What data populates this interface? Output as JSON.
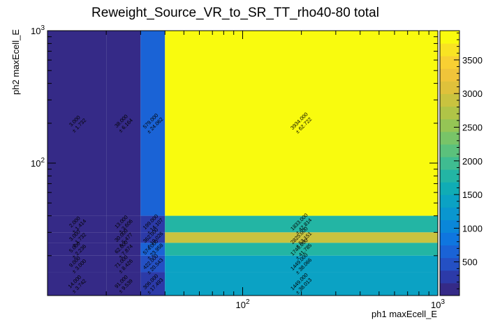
{
  "chart_data": {
    "type": "heatmap",
    "title": "Reweight_Source_VR_to_SR_TT_rho40-80 total",
    "xlabel": "ph1 maxEcell_E",
    "ylabel": "ph2 maxEcell_E",
    "x_scale": "log",
    "y_scale": "log",
    "xlim": [
      10,
      1000
    ],
    "ylim": [
      10,
      1000
    ],
    "x_ticks": [
      {
        "value": 10,
        "label": ""
      },
      {
        "value": 100,
        "label": "10^2"
      },
      {
        "value": 1000,
        "label": "10^3"
      }
    ],
    "y_ticks": [
      {
        "value": 10,
        "label": ""
      },
      {
        "value": 100,
        "label": "10^2"
      },
      {
        "value": 1000,
        "label": "10^3"
      }
    ],
    "x_bins": [
      10,
      20,
      30,
      40,
      1000
    ],
    "y_bins": [
      10,
      15,
      20,
      25,
      30,
      40,
      1000
    ],
    "zlim": [
      0,
      3934
    ],
    "z_ticks": [
      500,
      1000,
      1500,
      2000,
      2500,
      3000,
      3500
    ],
    "palette": [
      "#352a87",
      "#2c3aa8",
      "#2450c4",
      "#1a63d6",
      "#0f76df",
      "#0a87d9",
      "#0a96cf",
      "#0ba2c4",
      "#10acb5",
      "#23b5a4",
      "#3fbc91",
      "#5bc17c",
      "#78c468",
      "#95c555",
      "#b0c447",
      "#c9c33f",
      "#dfc13b",
      "#f0c43a",
      "#f8d033",
      "#f9e323",
      "#f9fb0e"
    ],
    "cells": [
      {
        "xbin": 0,
        "ybin": 5,
        "value": "3.000",
        "error": "± 1.732"
      },
      {
        "xbin": 1,
        "ybin": 5,
        "value": "38.000",
        "error": "± 6.164"
      },
      {
        "xbin": 2,
        "ybin": 5,
        "value": "579.000",
        "error": "± 24.062"
      },
      {
        "xbin": 3,
        "ybin": 5,
        "value": "3934.000",
        "error": "± 62.722"
      },
      {
        "xbin": 0,
        "ybin": 4,
        "value": "2.000",
        "error": "± 1.414"
      },
      {
        "xbin": 1,
        "ybin": 4,
        "value": "13.000",
        "error": "± 3.606"
      },
      {
        "xbin": 2,
        "ybin": 4,
        "value": "199.000",
        "error": "± 14.107"
      },
      {
        "xbin": 3,
        "ybin": 4,
        "value": "1833.000",
        "error": "± 42.814"
      },
      {
        "xbin": 0,
        "ybin": 3,
        "value": "3.000",
        "error": "± 1.732"
      },
      {
        "xbin": 1,
        "ybin": 3,
        "value": "30.000",
        "error": "± 5.477"
      },
      {
        "xbin": 2,
        "ybin": 3,
        "value": "362.000",
        "error": "± 19.026"
      },
      {
        "xbin": 3,
        "ybin": 3,
        "value": "2825.000",
        "error": "± 53.151"
      },
      {
        "xbin": 0,
        "ybin": 2,
        "value": "5.000",
        "error": "± 2.236"
      },
      {
        "xbin": 1,
        "ybin": 2,
        "value": "62.000",
        "error": "± 7.874"
      },
      {
        "xbin": 2,
        "ybin": 2,
        "value": "574.000",
        "error": "± 23.958"
      },
      {
        "xbin": 3,
        "ybin": 2,
        "value": "1746.000",
        "error": "± 41.785"
      },
      {
        "xbin": 0,
        "ybin": 1,
        "value": "9.000",
        "error": "± 3.000"
      },
      {
        "xbin": 1,
        "ybin": 1,
        "value": "71.000",
        "error": "± 8.426"
      },
      {
        "xbin": 2,
        "ybin": 1,
        "value": "422.000",
        "error": "± 20.543"
      },
      {
        "xbin": 3,
        "ybin": 1,
        "value": "1449.000",
        "error": "± 38.066"
      },
      {
        "xbin": 0,
        "ybin": 0,
        "value": "14.000",
        "error": "± 3.742"
      },
      {
        "xbin": 1,
        "ybin": 0,
        "value": "91.000",
        "error": "± 9.539"
      },
      {
        "xbin": 2,
        "ybin": 0,
        "value": "306.000",
        "error": "± 17.493"
      },
      {
        "xbin": 3,
        "ybin": 0,
        "value": "1449.000",
        "error": "± 38.013"
      }
    ]
  }
}
